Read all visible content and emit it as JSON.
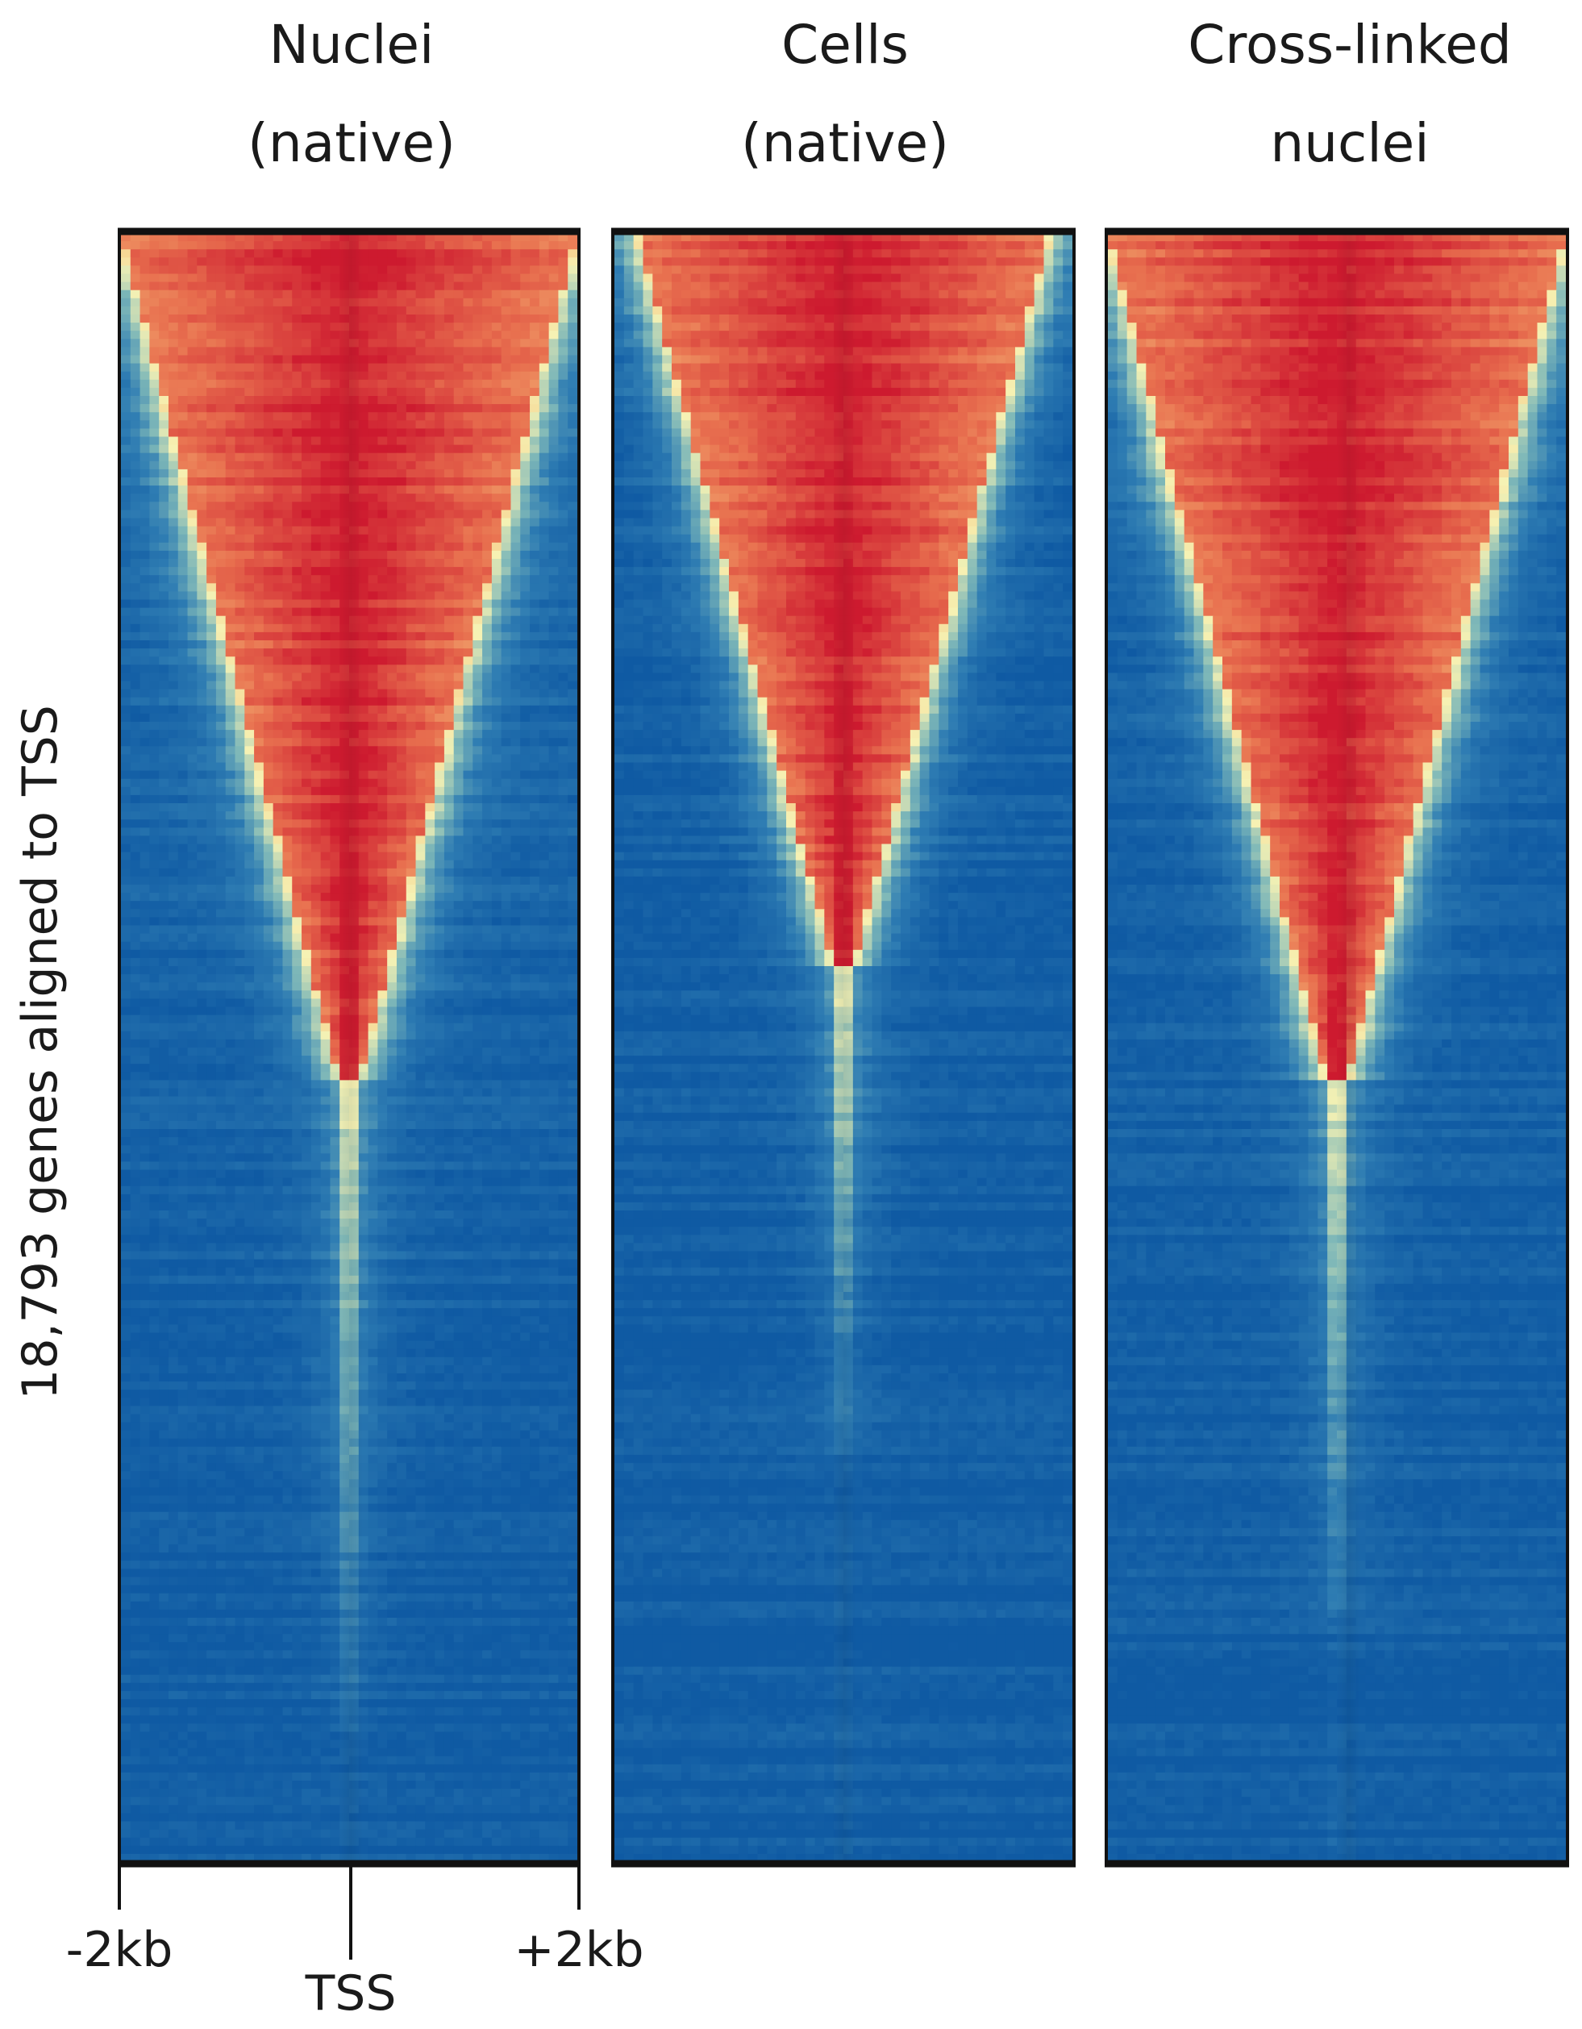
{
  "chart_data": {
    "type": "heatmap",
    "ylabel": "18,793 genes aligned to TSS",
    "n_genes": 18793,
    "x_ticks": [
      "-2kb",
      "TSS",
      "+2kb"
    ],
    "x_range_kb": [
      -2,
      2
    ],
    "colorscale": [
      "#0f5aa3",
      "#2f7db3",
      "#7fb8b8",
      "#f6f2b4",
      "#f6c07c",
      "#e8704f",
      "#cd1a2f"
    ],
    "panels": [
      {
        "title": [
          "Nuclei",
          "(native)"
        ],
        "profile": {
          "signal_rows_fraction": 0.52,
          "tail_rows_fraction": 0.92,
          "top_half_width_kb": 2.0,
          "peak_intensity": 1.0,
          "background": 0.06
        }
      },
      {
        "title": [
          "Cells",
          "(native)"
        ],
        "profile": {
          "signal_rows_fraction": 0.45,
          "tail_rows_fraction": 0.75,
          "top_half_width_kb": 1.8,
          "peak_intensity": 1.0,
          "background": 0.02
        }
      },
      {
        "title": [
          "Cross-linked",
          "nuclei"
        ],
        "profile": {
          "signal_rows_fraction": 0.52,
          "tail_rows_fraction": 0.85,
          "top_half_width_kb": 2.0,
          "peak_intensity": 1.0,
          "background": 0.04
        }
      }
    ]
  }
}
